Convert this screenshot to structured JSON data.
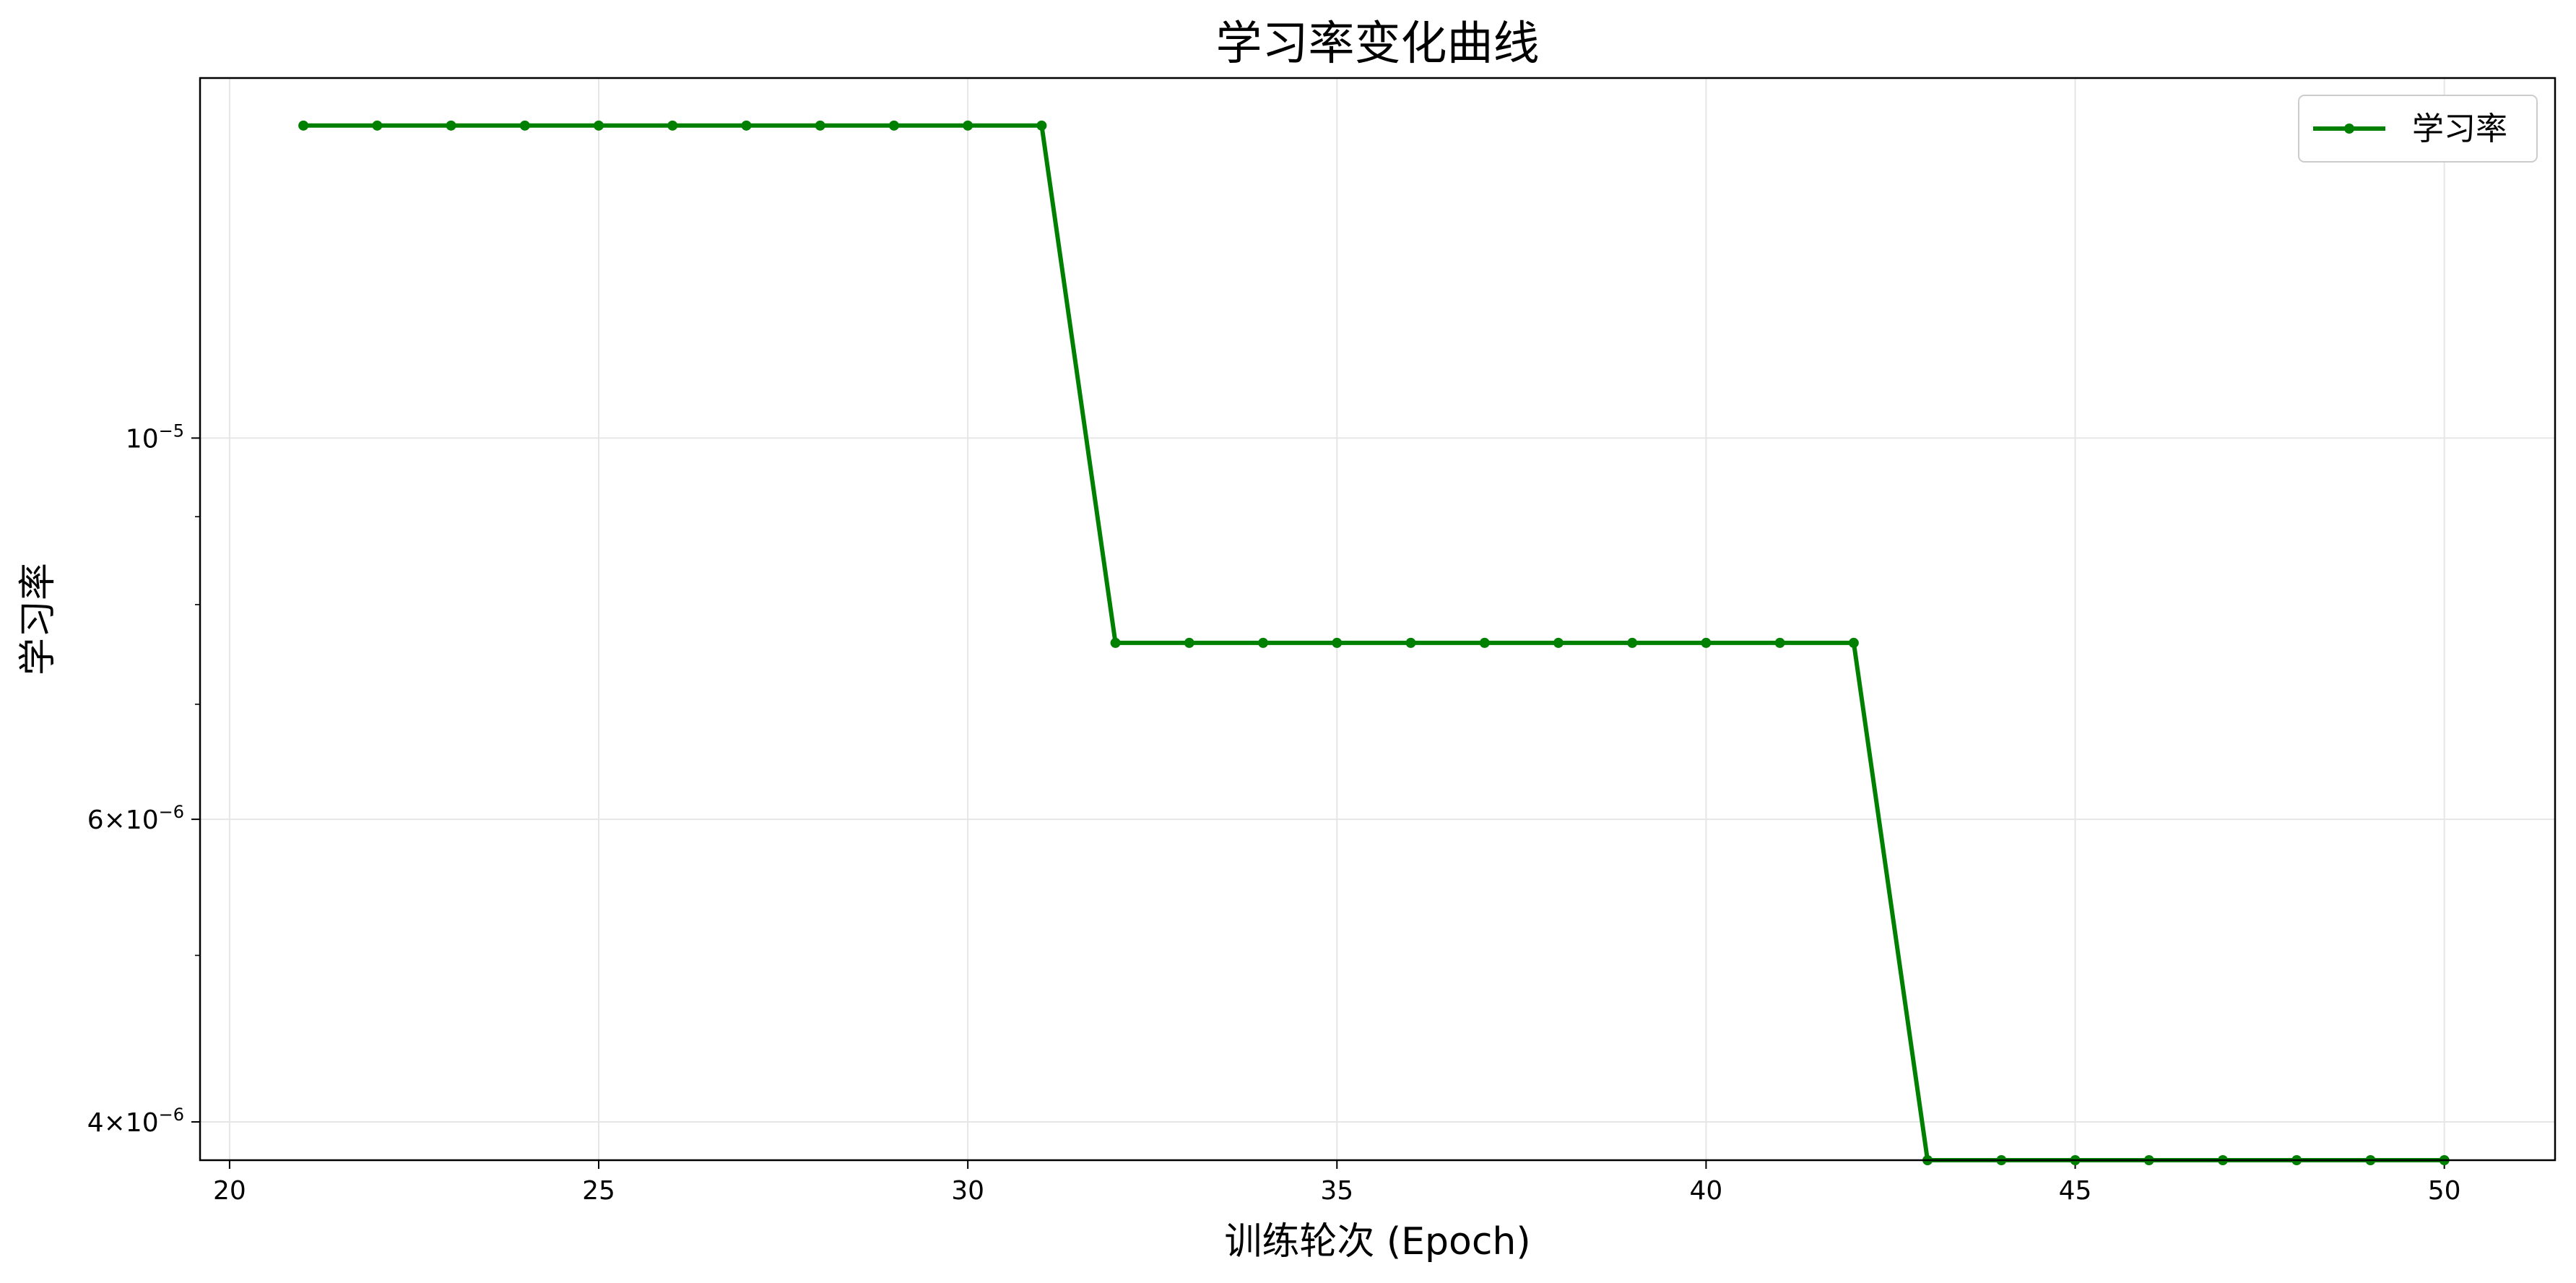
{
  "chart_data": {
    "type": "line",
    "title": "学习率变化曲线",
    "xlabel": "训练轮次 (Epoch)",
    "ylabel": "学习率",
    "yscale": "log",
    "xlim": [
      19.6,
      51.5
    ],
    "ylim": [
      3.8e-06,
      1.62e-05
    ],
    "grid": true,
    "legend_position": "top-right",
    "line_color": "#008000",
    "x_ticks": [
      20,
      25,
      30,
      35,
      40,
      45,
      50
    ],
    "x_tick_labels": [
      "20",
      "25",
      "30",
      "35",
      "40",
      "45",
      "50"
    ],
    "y_major_ticks": [
      {
        "value": 1e-05,
        "mantissa": "",
        "base": "10",
        "exponent": "−5"
      },
      {
        "value": 6e-06,
        "mantissa": "6",
        "base": "10",
        "exponent": "−6"
      },
      {
        "value": 4e-06,
        "mantissa": "4",
        "base": "10",
        "exponent": "−6"
      }
    ],
    "y_minor_ticks": [
      9e-06,
      8e-06,
      7e-06,
      5e-06
    ],
    "series": [
      {
        "name": "学习率",
        "x": [
          21,
          22,
          23,
          24,
          25,
          26,
          27,
          28,
          29,
          30,
          31,
          32,
          33,
          34,
          35,
          36,
          37,
          38,
          39,
          40,
          41,
          42,
          43,
          44,
          45,
          46,
          47,
          48,
          49,
          50
        ],
        "values": [
          1.52e-05,
          1.52e-05,
          1.52e-05,
          1.52e-05,
          1.52e-05,
          1.52e-05,
          1.52e-05,
          1.52e-05,
          1.52e-05,
          1.52e-05,
          1.52e-05,
          7.6e-06,
          7.6e-06,
          7.6e-06,
          7.6e-06,
          7.6e-06,
          7.6e-06,
          7.6e-06,
          7.6e-06,
          7.6e-06,
          7.6e-06,
          7.6e-06,
          3.8e-06,
          3.8e-06,
          3.8e-06,
          3.8e-06,
          3.8e-06,
          3.8e-06,
          3.8e-06,
          3.8e-06
        ]
      }
    ]
  }
}
